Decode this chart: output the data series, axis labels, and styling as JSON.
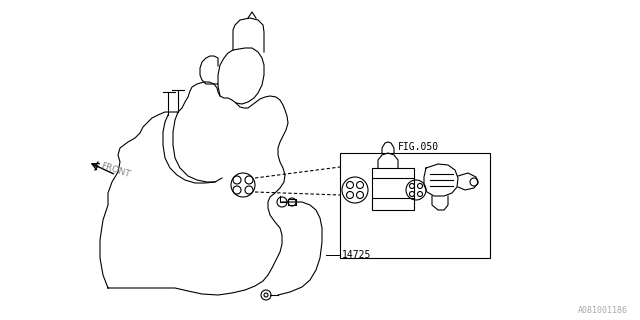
{
  "bg_color": "#ffffff",
  "lc": "#000000",
  "lw": 0.8,
  "label_14725": "14725",
  "label_fig050": "FIG.050",
  "label_front": "FRONT",
  "label_doc": "A081001186"
}
